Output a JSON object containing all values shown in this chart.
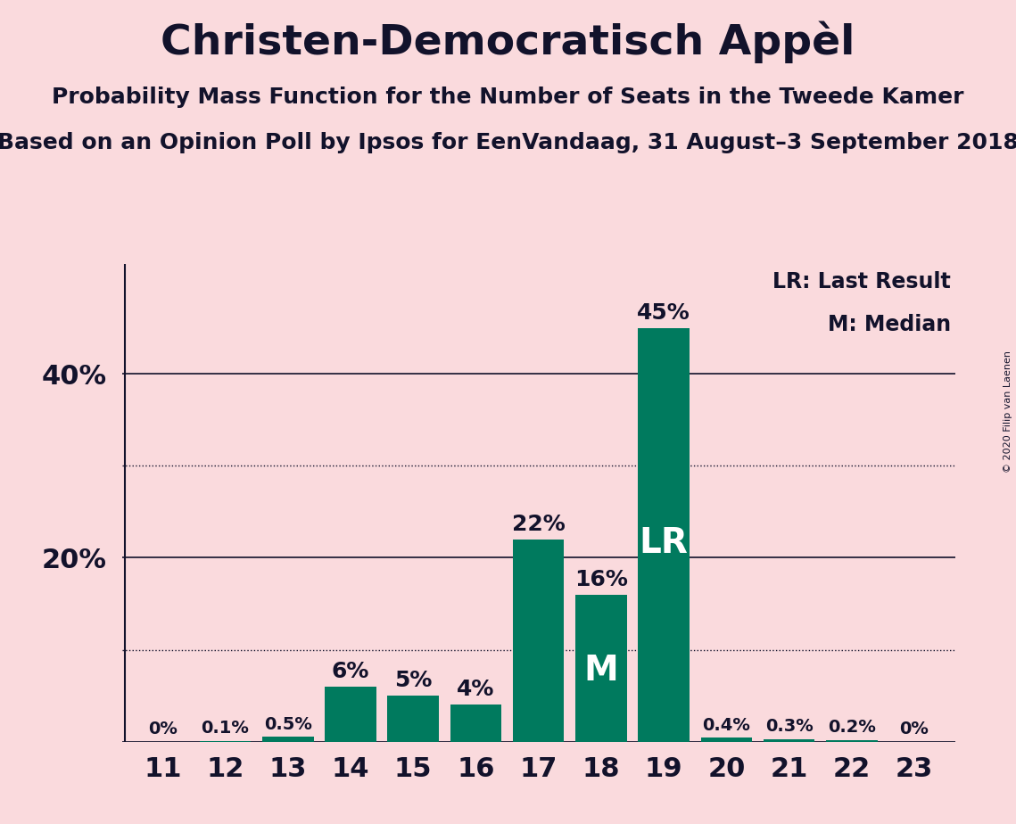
{
  "title": "Christen-Democratisch Appèl",
  "subtitle1": "Probability Mass Function for the Number of Seats in the Tweede Kamer",
  "subtitle2": "Based on an Opinion Poll by Ipsos for EenVandaag, 31 August–3 September 2018",
  "copyright": "© 2020 Filip van Laenen",
  "seats": [
    11,
    12,
    13,
    14,
    15,
    16,
    17,
    18,
    19,
    20,
    21,
    22,
    23
  ],
  "probabilities": [
    0.0,
    0.1,
    0.5,
    6.0,
    5.0,
    4.0,
    22.0,
    16.0,
    45.0,
    0.4,
    0.3,
    0.2,
    0.0
  ],
  "bar_color": "#007A5E",
  "background_color": "#FADADD",
  "text_color": "#12122B",
  "label_texts": [
    "0%",
    "0.1%",
    "0.5%",
    "6%",
    "5%",
    "4%",
    "22%",
    "16%",
    "45%",
    "0.4%",
    "0.3%",
    "0.2%",
    "0%"
  ],
  "LR_seat": 19,
  "M_seat": 18,
  "legend_LR": "LR: Last Result",
  "legend_M": "M: Median",
  "yticks": [
    0,
    20,
    40
  ],
  "dotted_lines": [
    10,
    30
  ],
  "ylim": [
    0,
    52
  ],
  "title_fontsize": 34,
  "subtitle_fontsize": 18,
  "tick_fontsize": 22,
  "label_fontsize_small": 14,
  "label_fontsize_large": 18,
  "inner_label_fontsize": 28
}
